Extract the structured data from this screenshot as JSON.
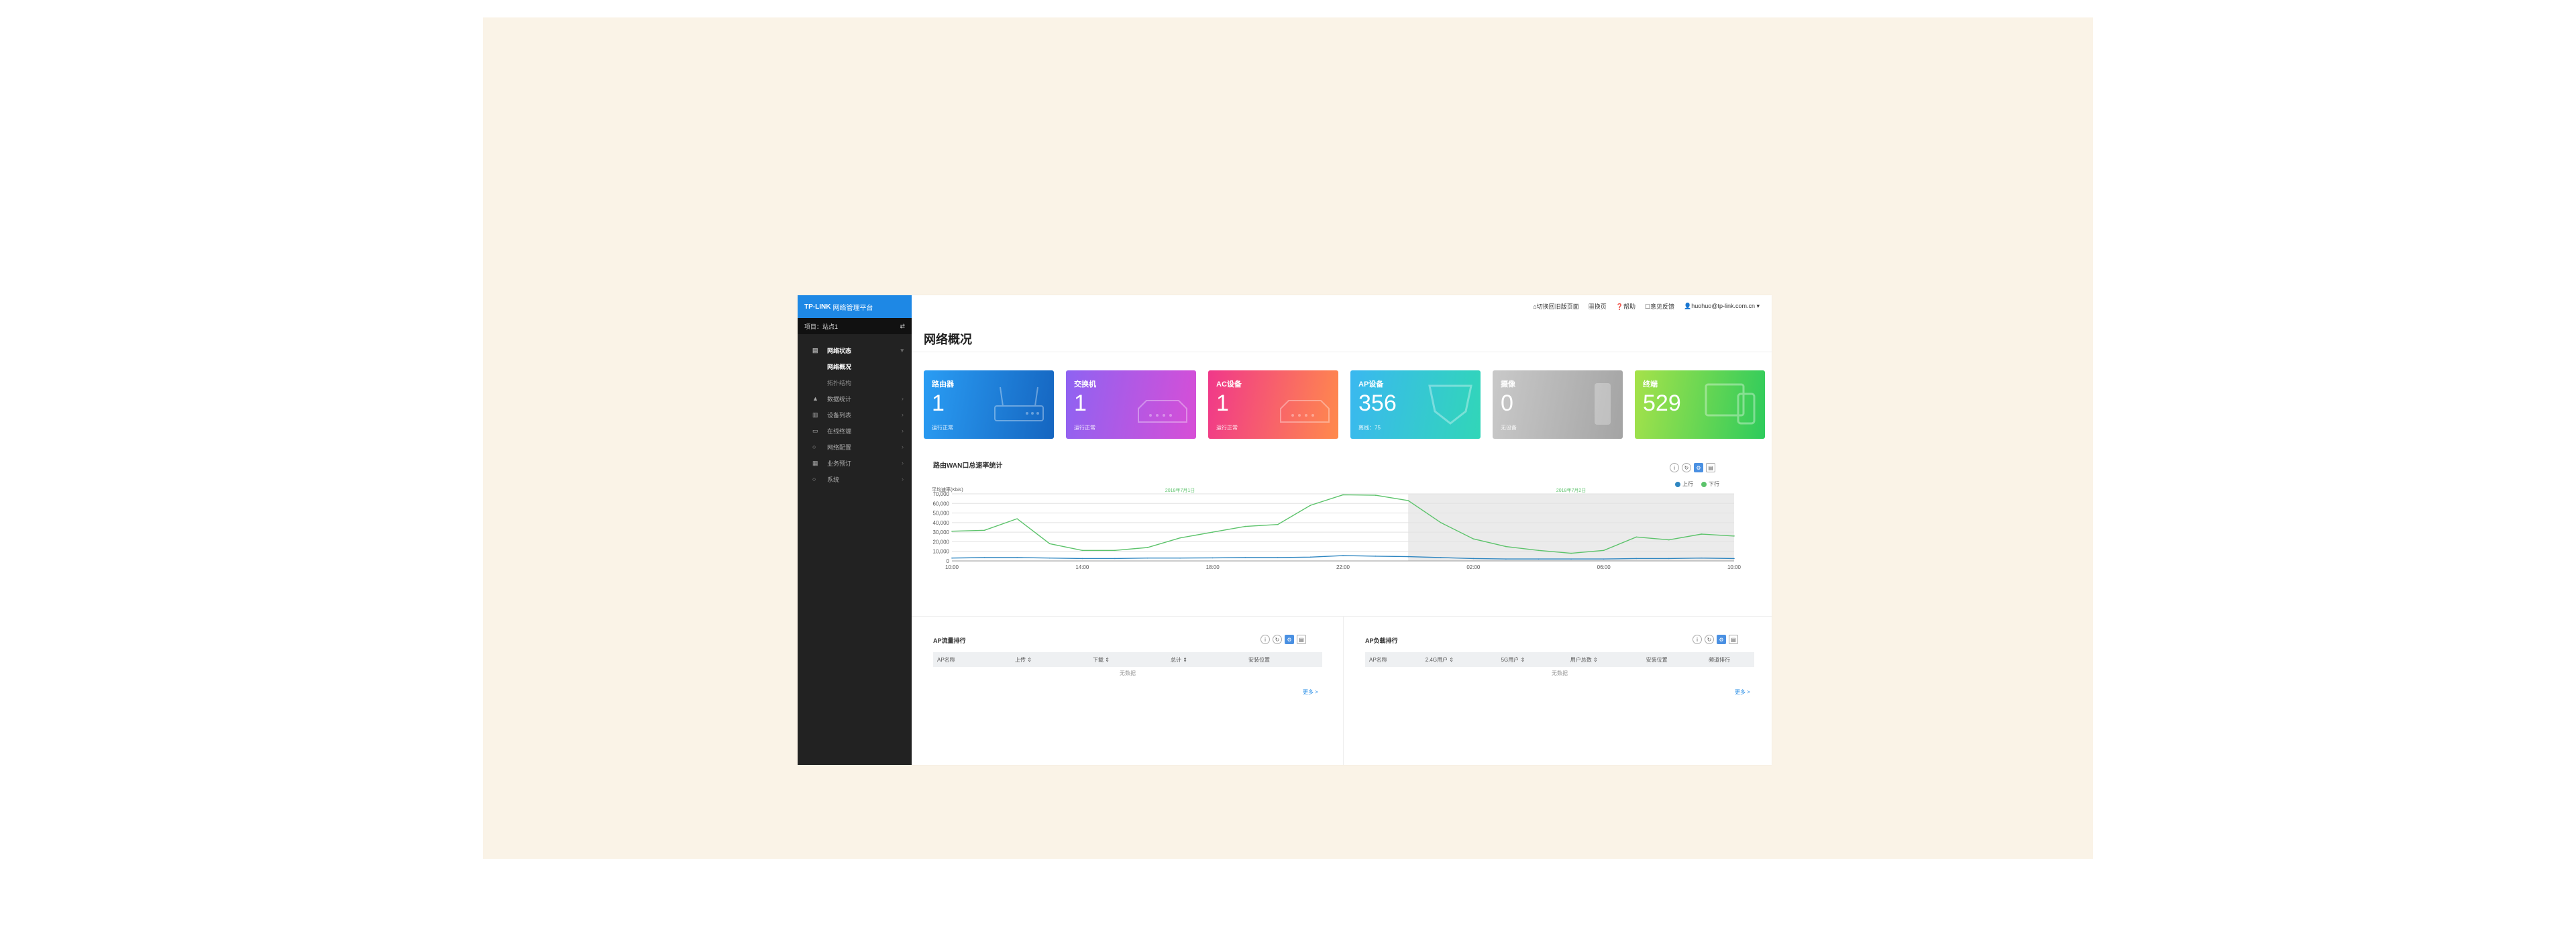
{
  "app": {
    "logo_brand": "TP-LINK",
    "logo_title": "网络管理平台"
  },
  "site": {
    "label": "项目：站点1",
    "icon": "swap-icon"
  },
  "sidebar": {
    "items": [
      {
        "label": "网络状态",
        "icon": "dashboard-icon",
        "active": true,
        "arrow": "▾"
      },
      {
        "label": "网络概况",
        "sub": true,
        "active": true
      },
      {
        "label": "拓扑结构",
        "sub": true
      },
      {
        "label": "数据统计",
        "icon": "stats-icon",
        "arrow": "›"
      },
      {
        "label": "设备列表",
        "icon": "device-icon",
        "arrow": "›"
      },
      {
        "label": "在线终端",
        "icon": "terminal-icon",
        "arrow": "›"
      },
      {
        "label": "网络配置",
        "icon": "config-icon",
        "arrow": "›"
      },
      {
        "label": "业务预订",
        "icon": "business-icon",
        "arrow": "›"
      },
      {
        "label": "系统",
        "icon": "system-icon",
        "arrow": "›"
      }
    ]
  },
  "topbar": {
    "home": "切换回旧版页面",
    "guide": "换页",
    "help": "帮助",
    "feedback": "意见反馈",
    "user": "huohuo@tp-link.com.cn"
  },
  "page_title": "网络概况",
  "cards": [
    {
      "title": "路由器",
      "value": "1",
      "sub": "运行正常",
      "from": "#2a9df4",
      "to": "#1565c0",
      "deco": "router"
    },
    {
      "title": "交换机",
      "value": "1",
      "sub": "运行正常",
      "from": "#8e63f2",
      "to": "#d74ed6",
      "deco": "switch"
    },
    {
      "title": "AC设备",
      "value": "1",
      "sub": "运行正常",
      "from": "#f0388a",
      "to": "#ff8a4c",
      "deco": "switch"
    },
    {
      "title": "AP设备",
      "value": "356",
      "sub": "离线：75",
      "from": "#3ab8f0",
      "to": "#31d6b8",
      "deco": "ap"
    },
    {
      "title": "摄像",
      "value": "0",
      "sub": "无设备",
      "from": "#c9c9c9",
      "to": "#a4a4a4",
      "deco": "camera"
    },
    {
      "title": "终端",
      "value": "529",
      "sub": "",
      "from": "#a6e24a",
      "to": "#2dcb5c",
      "deco": "terminal"
    }
  ],
  "chart_section": {
    "title": "路由WAN口总速率统计",
    "tools": [
      "info-icon",
      "refresh-icon",
      "settings-icon",
      "calendar-icon"
    ]
  },
  "chart_data": {
    "type": "line",
    "ylabel": "平均速率(Kb/s)",
    "ylim": [
      0,
      70000
    ],
    "yticks": [
      0,
      10000,
      20000,
      30000,
      40000,
      50000,
      60000,
      70000
    ],
    "ytick_labels": [
      "0",
      "10,000",
      "20,000",
      "30,000",
      "40,000",
      "50,000",
      "60,000",
      "70,000"
    ],
    "xlim": [
      10,
      34
    ],
    "xticks": [
      10,
      14,
      18,
      22,
      26,
      30,
      34
    ],
    "xtick_labels": [
      "10:00",
      "14:00",
      "18:00",
      "22:00",
      "02:00",
      "06:00",
      "10:00"
    ],
    "date_labels": [
      {
        "x": 17,
        "label": "2018年7月1日"
      },
      {
        "x": 29,
        "label": "2018年7月2日"
      }
    ],
    "shaded_x": [
      24,
      34
    ],
    "series": [
      {
        "name": "上行",
        "color": "#2e86c1",
        "x": [
          10,
          11,
          12,
          13,
          14,
          15,
          16,
          17,
          18,
          19,
          20,
          21,
          22,
          23,
          24,
          25,
          26,
          27,
          28,
          29,
          30,
          31,
          32,
          33,
          34
        ],
        "values": [
          3000,
          3500,
          3500,
          3000,
          2500,
          2500,
          3000,
          3000,
          3200,
          3500,
          3500,
          4000,
          5500,
          5000,
          4500,
          3500,
          2500,
          2000,
          2000,
          2000,
          2000,
          2500,
          2500,
          3000,
          2500
        ]
      },
      {
        "name": "下行",
        "color": "#5cc36b",
        "x": [
          10,
          11,
          12,
          13,
          14,
          15,
          16,
          17,
          18,
          19,
          20,
          21,
          22,
          23,
          24,
          25,
          26,
          27,
          28,
          29,
          30,
          31,
          32,
          33,
          34
        ],
        "values": [
          31000,
          32000,
          44000,
          18000,
          11000,
          11000,
          14000,
          24000,
          30000,
          36000,
          38000,
          58000,
          69000,
          68500,
          63000,
          40000,
          23000,
          15000,
          11000,
          8000,
          11000,
          25000,
          22000,
          28000,
          26000
        ]
      }
    ],
    "grid": true,
    "legend": "top-right"
  },
  "ap_traffic": {
    "title": "AP流量排行",
    "columns": [
      "AP名称",
      "上传 ⇕",
      "下载 ⇕",
      "总计 ⇕",
      "安装位置"
    ],
    "empty": "无数据",
    "more": "更多 >"
  },
  "ap_load": {
    "title": "AP负载排行",
    "columns": [
      "AP名称",
      "2.4G用户 ⇕",
      "5G用户 ⇕",
      "用户总数 ⇕",
      "安装位置",
      "频道排行"
    ],
    "empty": "无数据",
    "more": "更多 >"
  }
}
